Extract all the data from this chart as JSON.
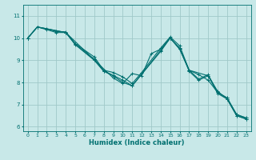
{
  "xlabel": "Humidex (Indice chaleur)",
  "ylabel": "",
  "bg_color": "#c8e8e8",
  "grid_color": "#a0c8c8",
  "line_color": "#007070",
  "xlim": [
    -0.5,
    23.5
  ],
  "ylim": [
    5.8,
    11.5
  ],
  "yticks": [
    6,
    7,
    8,
    9,
    10,
    11
  ],
  "xticks": [
    0,
    1,
    2,
    3,
    4,
    5,
    6,
    7,
    8,
    9,
    10,
    11,
    12,
    13,
    14,
    15,
    16,
    17,
    18,
    19,
    20,
    21,
    22,
    23
  ],
  "lines": [
    {
      "x": [
        0,
        1,
        2,
        3,
        4,
        5,
        7,
        8,
        9,
        10,
        11,
        12,
        14,
        15,
        16,
        17,
        18,
        19,
        20,
        21,
        22,
        23
      ],
      "y": [
        10.0,
        10.5,
        10.42,
        10.3,
        10.28,
        9.75,
        9.15,
        8.55,
        8.45,
        8.25,
        7.95,
        8.45,
        9.55,
        10.05,
        9.65,
        8.55,
        8.15,
        8.35,
        7.55,
        7.3,
        6.55,
        6.4
      ]
    },
    {
      "x": [
        0,
        1,
        2,
        3,
        4,
        5,
        7,
        8,
        9,
        10,
        11,
        14,
        15,
        16,
        17,
        18,
        19,
        20,
        21,
        22,
        23
      ],
      "y": [
        10.0,
        10.5,
        10.38,
        10.25,
        10.25,
        9.72,
        9.05,
        8.52,
        8.32,
        8.1,
        7.85,
        9.45,
        10.0,
        9.55,
        8.5,
        8.1,
        8.3,
        7.6,
        7.25,
        6.5,
        6.35
      ]
    },
    {
      "x": [
        0,
        1,
        4,
        5,
        7,
        8,
        9,
        10,
        11,
        14,
        15,
        16,
        17,
        19,
        20,
        21,
        22,
        23
      ],
      "y": [
        10.0,
        10.5,
        10.25,
        9.7,
        9.0,
        8.5,
        8.3,
        8.0,
        7.85,
        9.4,
        10.0,
        9.5,
        8.55,
        8.3,
        7.5,
        7.25,
        6.5,
        6.35
      ]
    },
    {
      "x": [
        0,
        1,
        4,
        9,
        10,
        11,
        12,
        13,
        14,
        15,
        16,
        17,
        18,
        19,
        20,
        21,
        22,
        23
      ],
      "y": [
        10.0,
        10.5,
        10.25,
        8.2,
        7.95,
        8.4,
        8.3,
        9.3,
        9.5,
        10.0,
        9.5,
        8.55,
        8.35,
        8.1,
        7.55,
        7.3,
        6.55,
        6.4
      ]
    }
  ]
}
